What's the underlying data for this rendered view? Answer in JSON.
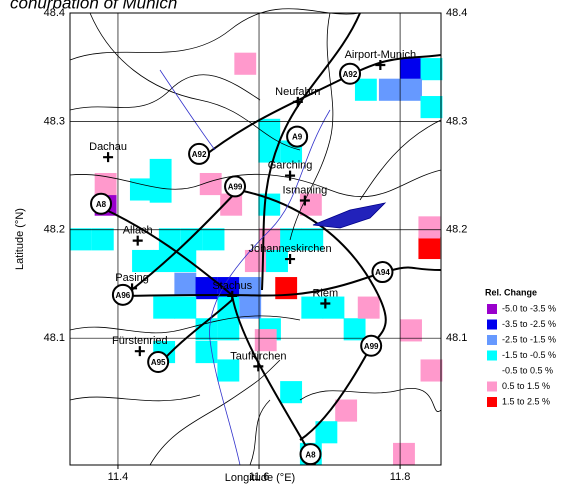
{
  "chart_data": {
    "type": "gridmap",
    "title": "conurbation of Munich",
    "x_label": "Longitude (°E)",
    "y_label": "Latitude (°N)",
    "xlim": [
      11.332,
      11.858
    ],
    "ylim": [
      47.983,
      48.4
    ],
    "xticks": [
      11.4,
      11.6,
      11.8
    ],
    "yticks": [
      48.1,
      48.2,
      48.3,
      48.4
    ],
    "grid": true,
    "legend_title": "Rel. Change",
    "classes": [
      {
        "label": "-5.0  to  -3.5 %",
        "color": "#9900cc"
      },
      {
        "label": "-3.5  to  -2.5 %",
        "color": "#0000ee"
      },
      {
        "label": "-2.5  to  -1.5 %",
        "color": "#6699ff"
      },
      {
        "label": "-1.5  to  -0.5 %",
        "color": "#00ffff"
      },
      {
        "label": "-0.5  to  0.5 %",
        "color": "#ffffff"
      },
      {
        "label": "0.5  to  1.5 %",
        "color": "#ff99cc"
      },
      {
        "label": "1.5  to  2.5 %",
        "color": "#ff0000"
      }
    ],
    "cell_size": [
      0.031,
      0.0204
    ],
    "cells": [
      {
        "lon": 11.565,
        "lat": 48.343,
        "class": 5
      },
      {
        "lon": 11.8,
        "lat": 48.338,
        "class": 1
      },
      {
        "lon": 11.829,
        "lat": 48.338,
        "class": 3
      },
      {
        "lon": 11.77,
        "lat": 48.319,
        "class": 2
      },
      {
        "lon": 11.8,
        "lat": 48.319,
        "class": 2
      },
      {
        "lon": 11.736,
        "lat": 48.319,
        "class": 3
      },
      {
        "lon": 11.829,
        "lat": 48.303,
        "class": 3
      },
      {
        "lon": 11.599,
        "lat": 48.282,
        "class": 3
      },
      {
        "lon": 11.599,
        "lat": 48.262,
        "class": 3
      },
      {
        "lon": 11.63,
        "lat": 48.262,
        "class": 3
      },
      {
        "lon": 11.417,
        "lat": 48.227,
        "class": 3
      },
      {
        "lon": 11.445,
        "lat": 48.245,
        "class": 3
      },
      {
        "lon": 11.445,
        "lat": 48.225,
        "class": 3
      },
      {
        "lon": 11.367,
        "lat": 48.213,
        "class": 0
      },
      {
        "lon": 11.367,
        "lat": 48.232,
        "class": 5
      },
      {
        "lon": 11.516,
        "lat": 48.232,
        "class": 5
      },
      {
        "lon": 11.545,
        "lat": 48.213,
        "class": 5
      },
      {
        "lon": 11.658,
        "lat": 48.213,
        "class": 5
      },
      {
        "lon": 11.599,
        "lat": 48.213,
        "class": 3
      },
      {
        "lon": 11.332,
        "lat": 48.181,
        "class": 3
      },
      {
        "lon": 11.363,
        "lat": 48.181,
        "class": 3
      },
      {
        "lon": 11.458,
        "lat": 48.181,
        "class": 3
      },
      {
        "lon": 11.489,
        "lat": 48.181,
        "class": 3
      },
      {
        "lon": 11.52,
        "lat": 48.181,
        "class": 3
      },
      {
        "lon": 11.6,
        "lat": 48.181,
        "class": 5
      },
      {
        "lon": 11.63,
        "lat": 48.181,
        "class": 3
      },
      {
        "lon": 11.66,
        "lat": 48.181,
        "class": 3
      },
      {
        "lon": 11.42,
        "lat": 48.161,
        "class": 3
      },
      {
        "lon": 11.45,
        "lat": 48.161,
        "class": 3
      },
      {
        "lon": 11.48,
        "lat": 48.161,
        "class": 3
      },
      {
        "lon": 11.58,
        "lat": 48.161,
        "class": 5
      },
      {
        "lon": 11.61,
        "lat": 48.161,
        "class": 3
      },
      {
        "lon": 11.48,
        "lat": 48.14,
        "class": 2
      },
      {
        "lon": 11.51,
        "lat": 48.136,
        "class": 1
      },
      {
        "lon": 11.541,
        "lat": 48.136,
        "class": 1
      },
      {
        "lon": 11.572,
        "lat": 48.136,
        "class": 2
      },
      {
        "lon": 11.623,
        "lat": 48.136,
        "class": 6
      },
      {
        "lon": 11.826,
        "lat": 48.173,
        "class": 6
      },
      {
        "lon": 11.826,
        "lat": 48.192,
        "class": 5
      },
      {
        "lon": 11.45,
        "lat": 48.118,
        "class": 3
      },
      {
        "lon": 11.48,
        "lat": 48.118,
        "class": 3
      },
      {
        "lon": 11.541,
        "lat": 48.118,
        "class": 3
      },
      {
        "lon": 11.572,
        "lat": 48.118,
        "class": 2
      },
      {
        "lon": 11.66,
        "lat": 48.118,
        "class": 3
      },
      {
        "lon": 11.69,
        "lat": 48.118,
        "class": 3
      },
      {
        "lon": 11.51,
        "lat": 48.098,
        "class": 3
      },
      {
        "lon": 11.541,
        "lat": 48.098,
        "class": 3
      },
      {
        "lon": 11.6,
        "lat": 48.098,
        "class": 3
      },
      {
        "lon": 11.72,
        "lat": 48.098,
        "class": 3
      },
      {
        "lon": 11.74,
        "lat": 48.118,
        "class": 5
      },
      {
        "lon": 11.594,
        "lat": 48.088,
        "class": 5
      },
      {
        "lon": 11.8,
        "lat": 48.097,
        "class": 5
      },
      {
        "lon": 11.829,
        "lat": 48.06,
        "class": 5
      },
      {
        "lon": 11.45,
        "lat": 48.077,
        "class": 3
      },
      {
        "lon": 11.51,
        "lat": 48.077,
        "class": 3
      },
      {
        "lon": 11.541,
        "lat": 48.06,
        "class": 3
      },
      {
        "lon": 11.63,
        "lat": 48.04,
        "class": 3
      },
      {
        "lon": 11.658,
        "lat": 47.983,
        "class": 3
      },
      {
        "lon": 11.708,
        "lat": 48.023,
        "class": 5
      },
      {
        "lon": 11.68,
        "lat": 48.003,
        "class": 3
      },
      {
        "lon": 11.79,
        "lat": 47.983,
        "class": 5
      }
    ],
    "places": [
      {
        "name": "Dachau",
        "lon": 11.386,
        "lat": 48.267
      },
      {
        "name": "Allach",
        "lon": 11.428,
        "lat": 48.19
      },
      {
        "name": "Pasing",
        "lon": 11.42,
        "lat": 48.146
      },
      {
        "name": "Fürstenried",
        "lon": 11.431,
        "lat": 48.088
      },
      {
        "name": "Taufkirchen",
        "lon": 11.599,
        "lat": 48.074
      },
      {
        "name": "Riem",
        "lon": 11.694,
        "lat": 48.132
      },
      {
        "name": "Johanneskirchen",
        "lon": 11.644,
        "lat": 48.173
      },
      {
        "name": "Ismaning",
        "lon": 11.665,
        "lat": 48.227
      },
      {
        "name": "Garching",
        "lon": 11.644,
        "lat": 48.25
      },
      {
        "name": "Neufahrn",
        "lon": 11.655,
        "lat": 48.318
      },
      {
        "name": "Airport-Munich",
        "lon": 11.772,
        "lat": 48.352
      },
      {
        "name": "Stachus",
        "lon": 11.562,
        "lat": 48.139
      }
    ],
    "motorways": [
      {
        "name": "A92",
        "lon": 11.729,
        "lat": 48.344
      },
      {
        "name": "A9",
        "lon": 11.654,
        "lat": 48.286
      },
      {
        "name": "A92",
        "lon": 11.515,
        "lat": 48.27
      },
      {
        "name": "A99",
        "lon": 11.566,
        "lat": 48.24
      },
      {
        "name": "A8",
        "lon": 11.376,
        "lat": 48.224
      },
      {
        "name": "A94",
        "lon": 11.775,
        "lat": 48.161
      },
      {
        "name": "A96",
        "lon": 11.407,
        "lat": 48.14
      },
      {
        "name": "A99",
        "lon": 11.759,
        "lat": 48.093
      },
      {
        "name": "A95",
        "lon": 11.457,
        "lat": 48.078
      },
      {
        "name": "A8",
        "lon": 11.673,
        "lat": 47.993
      }
    ]
  }
}
